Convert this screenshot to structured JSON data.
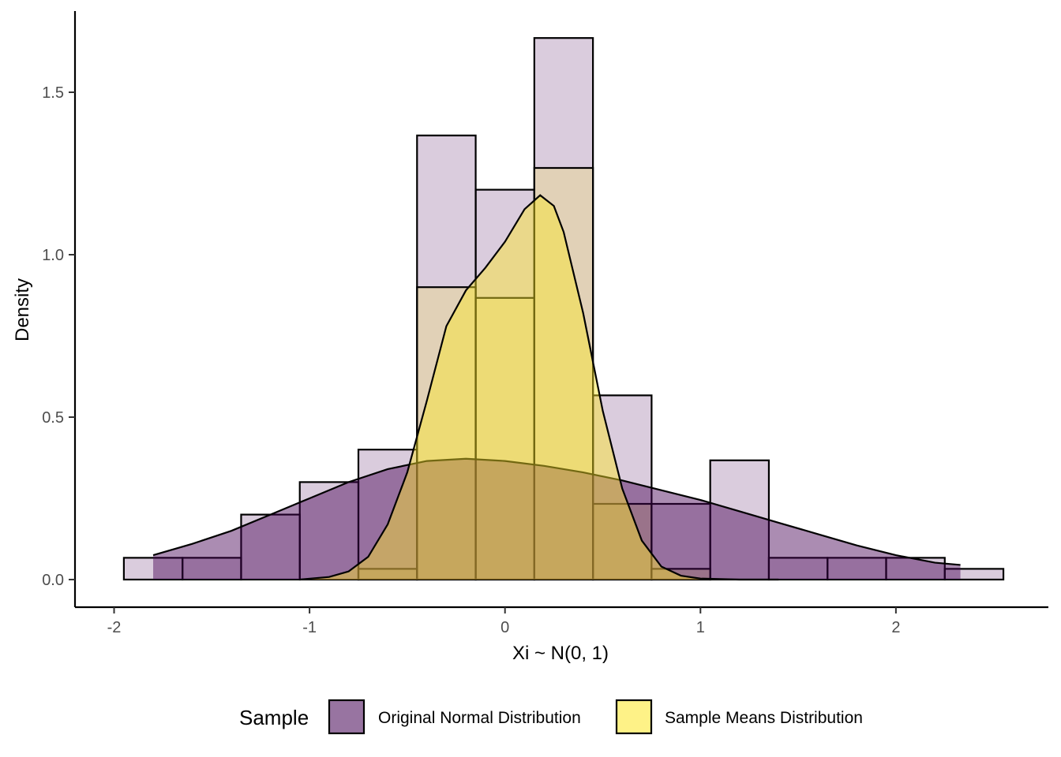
{
  "chart_data": {
    "type": "bar",
    "title": "",
    "xlabel": "Xi ~ N(0, 1)",
    "ylabel": "Density",
    "xlim": [
      -2.2,
      2.78
    ],
    "ylim": [
      -0.085,
      1.75
    ],
    "x_ticks": [
      -2,
      -1,
      0,
      1,
      2
    ],
    "x_tick_labels": [
      "-2",
      "-1",
      "0",
      "1",
      "2"
    ],
    "y_ticks": [
      0,
      0.5,
      1,
      1.5
    ],
    "y_tick_labels": [
      "0.0",
      "0.5",
      "1.0",
      "1.5"
    ],
    "grid": false,
    "legend": {
      "title": "Sample",
      "placement": "bottom",
      "entries": [
        "Original Normal Distribution",
        "Sample Means Distribution"
      ]
    },
    "series": [
      {
        "name": "Original Normal Distribution",
        "color": "#440154",
        "histogram": {
          "bin_width": 0.3,
          "bin_starts": [
            -1.95,
            -1.65,
            -1.35,
            -1.05,
            -0.75,
            -0.45,
            -0.15,
            0.15,
            0.45,
            0.75,
            1.05,
            1.35,
            1.65,
            1.95,
            2.25
          ],
          "density": [
            0.067,
            0.067,
            0.2,
            0.3,
            0.4,
            1.367,
            1.2,
            1.667,
            0.567,
            0.233,
            0.367,
            0.067,
            0.067,
            0.067,
            0.033
          ]
        },
        "density_curve": {
          "x": [
            -1.8,
            -1.6,
            -1.4,
            -1.2,
            -1.0,
            -0.8,
            -0.6,
            -0.4,
            -0.2,
            0.0,
            0.2,
            0.4,
            0.6,
            0.8,
            1.0,
            1.2,
            1.4,
            1.6,
            1.8,
            2.0,
            2.2,
            2.33
          ],
          "y": [
            0.075,
            0.11,
            0.15,
            0.2,
            0.25,
            0.3,
            0.34,
            0.365,
            0.372,
            0.365,
            0.35,
            0.33,
            0.305,
            0.275,
            0.245,
            0.21,
            0.175,
            0.14,
            0.105,
            0.075,
            0.052,
            0.045
          ]
        }
      },
      {
        "name": "Sample Means Distribution",
        "color": "#FDE725",
        "histogram": {
          "bin_width": 0.3,
          "bin_starts": [
            -0.75,
            -0.45,
            -0.15,
            0.15,
            0.45,
            0.75
          ],
          "density": [
            0.033,
            0.9,
            0.867,
            1.267,
            0.233,
            0.033
          ]
        },
        "density_curve": {
          "x": [
            -1.05,
            -0.9,
            -0.8,
            -0.7,
            -0.6,
            -0.5,
            -0.4,
            -0.3,
            -0.2,
            -0.1,
            0.0,
            0.1,
            0.18,
            0.25,
            0.3,
            0.4,
            0.5,
            0.6,
            0.7,
            0.8,
            0.9,
            1.0,
            1.2,
            1.4
          ],
          "y": [
            0.0,
            0.008,
            0.025,
            0.07,
            0.17,
            0.33,
            0.55,
            0.78,
            0.89,
            0.96,
            1.04,
            1.14,
            1.183,
            1.15,
            1.07,
            0.82,
            0.52,
            0.28,
            0.12,
            0.04,
            0.012,
            0.003,
            0.0,
            0.0
          ]
        }
      }
    ]
  }
}
